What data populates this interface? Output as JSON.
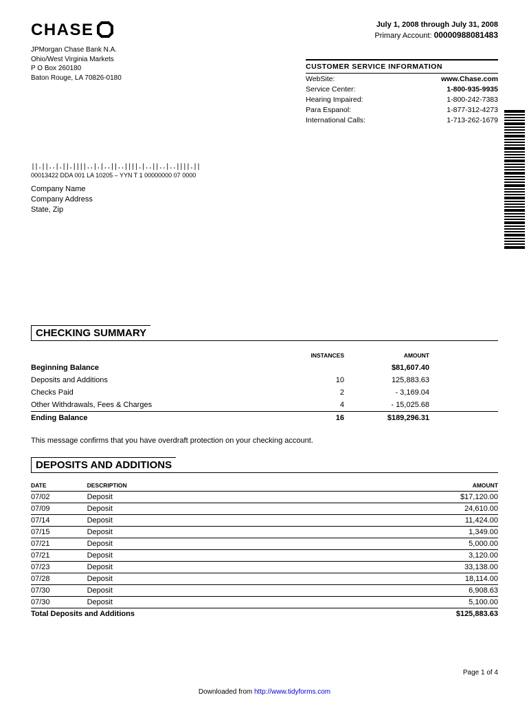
{
  "logo_text": "CHASE",
  "bank_address": {
    "line1": "JPMorgan Chase Bank N.A.",
    "line2": "Ohio/West Virginia Markets",
    "line3": "P O Box 260180",
    "line4": "Baton Rouge, LA 70826-0180"
  },
  "period": "July 1, 2008 through July 31, 2008",
  "primary_account_label": "Primary Account:",
  "primary_account_number": "00000988081483",
  "customer_service": {
    "title": "CUSTOMER SERVICE INFORMATION",
    "rows": [
      {
        "label": "WebSite:",
        "value": "www.Chase.com"
      },
      {
        "label": "Service Center:",
        "value": "1-800-935-9935"
      },
      {
        "label": "Hearing Impaired:",
        "value": "1-800-242-7383"
      },
      {
        "label": "Para Espanol:",
        "value": "1-877-312-4273"
      },
      {
        "label": "International Calls:",
        "value": "1-713-262-1679"
      }
    ]
  },
  "mailing": {
    "barcode_glyphs": "||.||..|.||.||||..|.|..||..||||.|..||..|..||||.||",
    "code": "00013422 DDA 001 LA 10205 – YYN T 1 00000000 07 0000",
    "name": "Company Name",
    "address": "Company Address",
    "state_zip": "State, Zip"
  },
  "checking_summary": {
    "title": "CHECKING SUMMARY",
    "headers": {
      "instances": "INSTANCES",
      "amount": "AMOUNT"
    },
    "rows": [
      {
        "label": "Beginning Balance",
        "instances": "",
        "amount": "$81,607.40",
        "bold": true
      },
      {
        "label": "Deposits and Additions",
        "instances": "10",
        "amount": "125,883.63",
        "bold": false
      },
      {
        "label": "Checks Paid",
        "instances": "2",
        "amount": "- 3,169.04",
        "bold": false
      },
      {
        "label": "Other Withdrawals, Fees & Charges",
        "instances": "4",
        "amount": "- 15,025.68",
        "bold": false
      },
      {
        "label": "Ending Balance",
        "instances": "16",
        "amount": "$189,296.31",
        "bold": true
      }
    ]
  },
  "overdraft_msg": "This message confirms that you have overdraft protection on your checking account.",
  "deposits": {
    "title": "DEPOSITS AND ADDITIONS",
    "headers": {
      "date": "DATE",
      "description": "DESCRIPTION",
      "amount": "AMOUNT"
    },
    "rows": [
      {
        "date": "07/02",
        "description": "Deposit",
        "amount": "$17,120.00"
      },
      {
        "date": "07/09",
        "description": "Deposit",
        "amount": "24,610.00"
      },
      {
        "date": "07/14",
        "description": "Deposit",
        "amount": "11,424.00"
      },
      {
        "date": "07/15",
        "description": "Deposit",
        "amount": "1,349.00"
      },
      {
        "date": "07/21",
        "description": "Deposit",
        "amount": "5,000.00"
      },
      {
        "date": "07/21",
        "description": "Deposit",
        "amount": "3,120.00"
      },
      {
        "date": "07/23",
        "description": "Deposit",
        "amount": "33,138.00"
      },
      {
        "date": "07/28",
        "description": "Deposit",
        "amount": "18,114.00"
      },
      {
        "date": "07/30",
        "description": "Deposit",
        "amount": "6,908.63"
      },
      {
        "date": "07/30",
        "description": "Deposit",
        "amount": "5,100.00"
      }
    ],
    "total_label": "Total Deposits and Additions",
    "total_amount": "$125,883.63"
  },
  "page_indicator": "Page 1 of 4",
  "download_prefix": "Downloaded from ",
  "download_url": "http://www.tidyforms.com"
}
